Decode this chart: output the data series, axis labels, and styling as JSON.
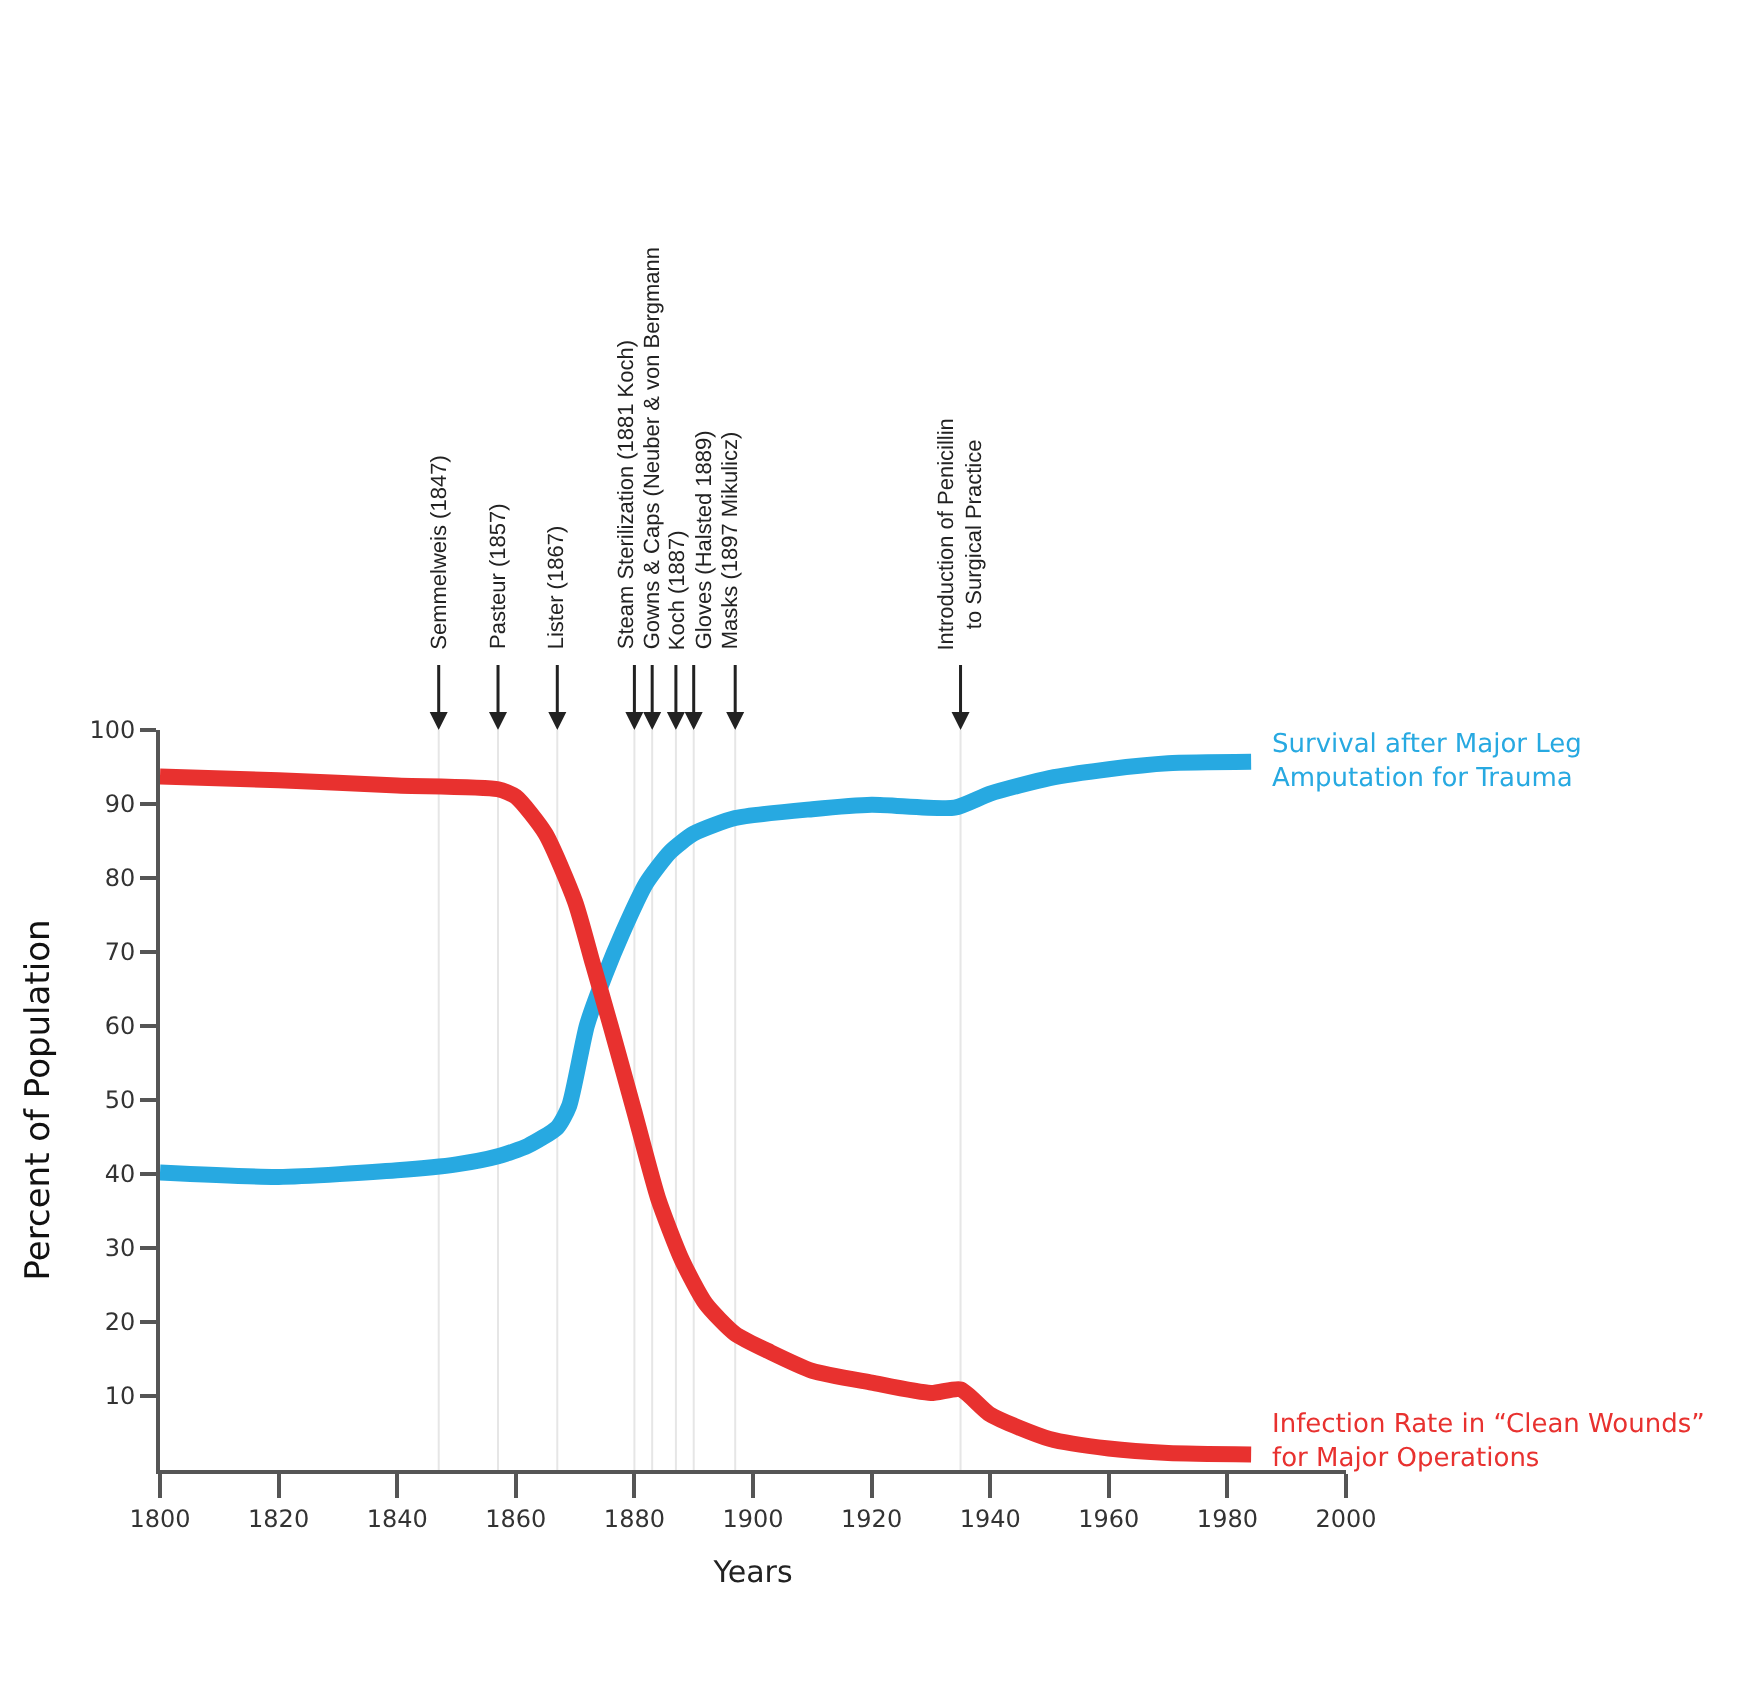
{
  "chart_data": {
    "type": "line",
    "xlabel": "Years",
    "ylabel": "Percent of Population",
    "xlim": [
      1800,
      2000
    ],
    "xticks": [
      1800,
      1820,
      1840,
      1860,
      1880,
      1900,
      1920,
      1940,
      1960,
      1980,
      2000
    ],
    "ylim": [
      0,
      100
    ],
    "yticks": [
      10,
      20,
      30,
      40,
      50,
      60,
      70,
      80,
      90,
      100
    ],
    "grid": false,
    "legend": false,
    "marker": "none",
    "line_style": "solid",
    "series": [
      {
        "name": "Survival after Major Leg\nAmputation for Trauma",
        "color": "#27a9e1",
        "x": [
          1800,
          1820,
          1840,
          1850,
          1857,
          1862,
          1867,
          1869,
          1872,
          1875,
          1878,
          1882,
          1886,
          1890,
          1897,
          1910,
          1920,
          1934,
          1940,
          1950,
          1960,
          1970,
          1984
        ],
        "values": [
          40.2,
          39.6,
          40.5,
          41.3,
          42.4,
          43.8,
          46.3,
          49.2,
          60.1,
          66.8,
          72.6,
          79.3,
          83.5,
          86,
          88.1,
          89.3,
          89.9,
          89.5,
          91.4,
          93.5,
          94.7,
          95.5,
          95.7
        ]
      },
      {
        "name": "Infection Rate in “Clean Wounds”\nfor Major Operations",
        "color": "#e8312f",
        "x": [
          1800,
          1820,
          1840,
          1857,
          1860,
          1865,
          1870,
          1873,
          1876,
          1880,
          1884,
          1888,
          1892,
          1897,
          1903,
          1910,
          1920,
          1930,
          1935,
          1940,
          1950,
          1960,
          1970,
          1984
        ],
        "values": [
          93.7,
          93.2,
          92.5,
          92,
          91,
          86,
          76.8,
          68.4,
          60,
          48.4,
          36.7,
          28.4,
          22.5,
          18.4,
          15.9,
          13.4,
          11.8,
          10.4,
          10.9,
          7.5,
          4.2,
          2.9,
          2.3,
          2.1
        ]
      }
    ],
    "ref_lines": [
      {
        "axis": "x",
        "value": 1847,
        "label": "Semmelweis (1847)",
        "color": "#e6e6e6"
      },
      {
        "axis": "x",
        "value": 1857,
        "label": "Pasteur (1857)",
        "color": "#e6e6e6"
      },
      {
        "axis": "x",
        "value": 1867,
        "label": "Lister (1867)",
        "color": "#e6e6e6"
      },
      {
        "axis": "x",
        "value": 1880,
        "label": "Steam Sterilization (1881 Koch)",
        "color": "#e6e6e6"
      },
      {
        "axis": "x",
        "value": 1883,
        "label": "Gowns & Caps (Neuber & von Bergmann",
        "color": "#e6e6e6"
      },
      {
        "axis": "x",
        "value": 1887,
        "label": "Koch (1887)",
        "color": "#e6e6e6"
      },
      {
        "axis": "x",
        "value": 1890,
        "label": "Gloves (Halsted 1889)",
        "color": "#e6e6e6"
      },
      {
        "axis": "x",
        "value": 1897,
        "label": "Masks (1897 Mikulicz)",
        "color": "#e6e6e6"
      },
      {
        "axis": "x",
        "value": 1935,
        "label": "Introduction of Penicillin\nto Surgical Practice",
        "color": "#e6e6e6"
      }
    ]
  }
}
